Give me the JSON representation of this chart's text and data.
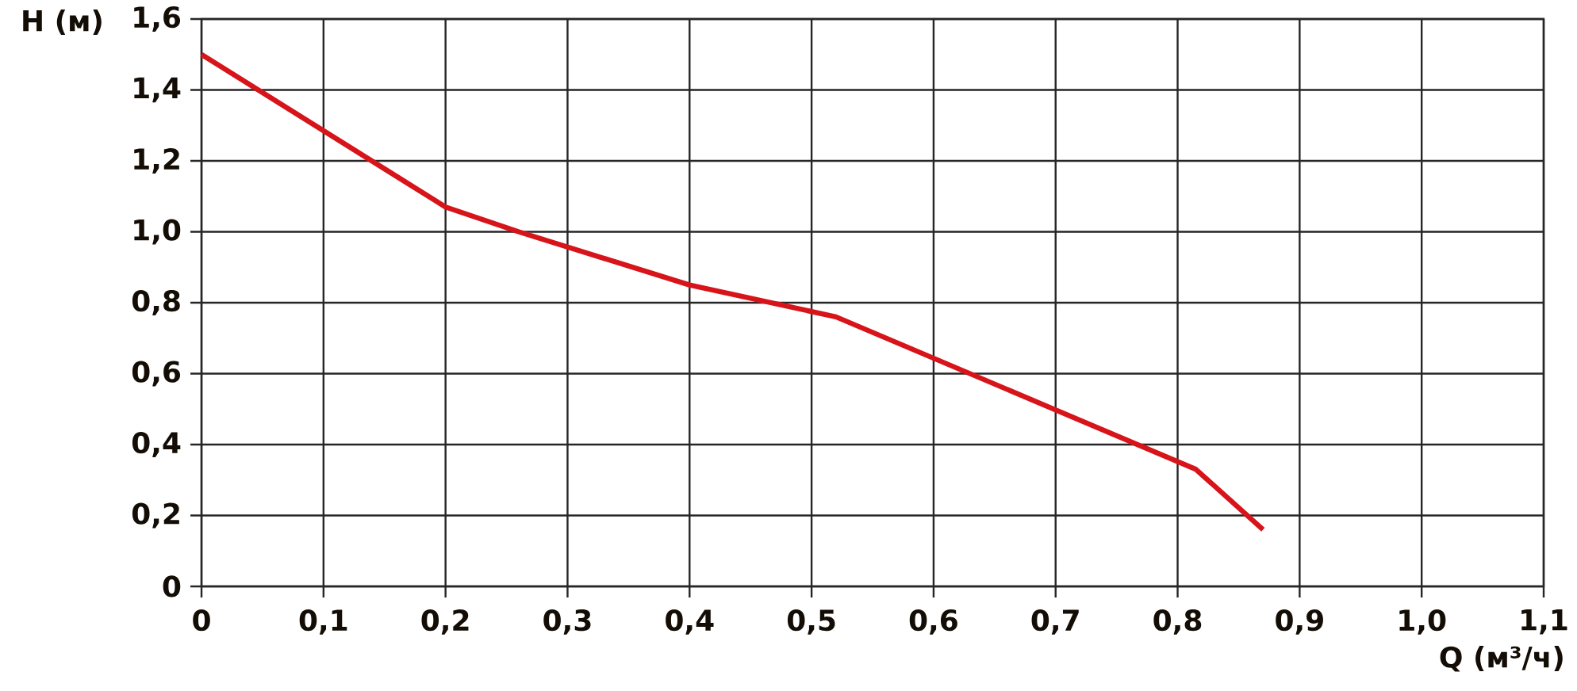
{
  "chart_data": {
    "type": "line",
    "xlabel": "Q (м³/ч)",
    "ylabel": "H (м)",
    "x": [
      0,
      0.2,
      0.26,
      0.4,
      0.52,
      0.815,
      0.87
    ],
    "series": [
      {
        "color": "#d7141a",
        "values": [
          1.5,
          1.07,
          1.0,
          0.85,
          0.76,
          0.33,
          0.16
        ]
      }
    ],
    "xlim": [
      0,
      1.1
    ],
    "ylim": [
      0,
      1.6
    ],
    "xticks": [
      0,
      {
        "value": 0.1,
        "label": "0,1"
      },
      {
        "value": 0.2,
        "label": "0,2"
      },
      {
        "value": 0.3,
        "label": "0,3"
      },
      {
        "value": 0.4,
        "label": "0,4"
      },
      {
        "value": 0.5,
        "label": "0,5"
      },
      {
        "value": 0.6,
        "label": "0,6"
      },
      {
        "value": 0.7,
        "label": "0,7"
      },
      {
        "value": 0.8,
        "label": "0,8"
      },
      {
        "value": 0.9,
        "label": "0,9"
      },
      {
        "value": 1.0,
        "label": "1,0"
      },
      {
        "value": 1.1,
        "label": "1,1"
      }
    ],
    "yticks": [
      0,
      {
        "value": 0.2,
        "label": "0,2"
      },
      {
        "value": 0.4,
        "label": "0,4"
      },
      {
        "value": 0.6,
        "label": "0,6"
      },
      {
        "value": 0.8,
        "label": "0,8"
      },
      {
        "value": 1.0,
        "label": "1,0"
      },
      {
        "value": 1.2,
        "label": "1,2"
      },
      {
        "value": 1.4,
        "label": "1,4"
      },
      {
        "value": 1.6,
        "label": "1,6"
      }
    ],
    "grid": true,
    "marker": "none",
    "line_style": "solid"
  }
}
